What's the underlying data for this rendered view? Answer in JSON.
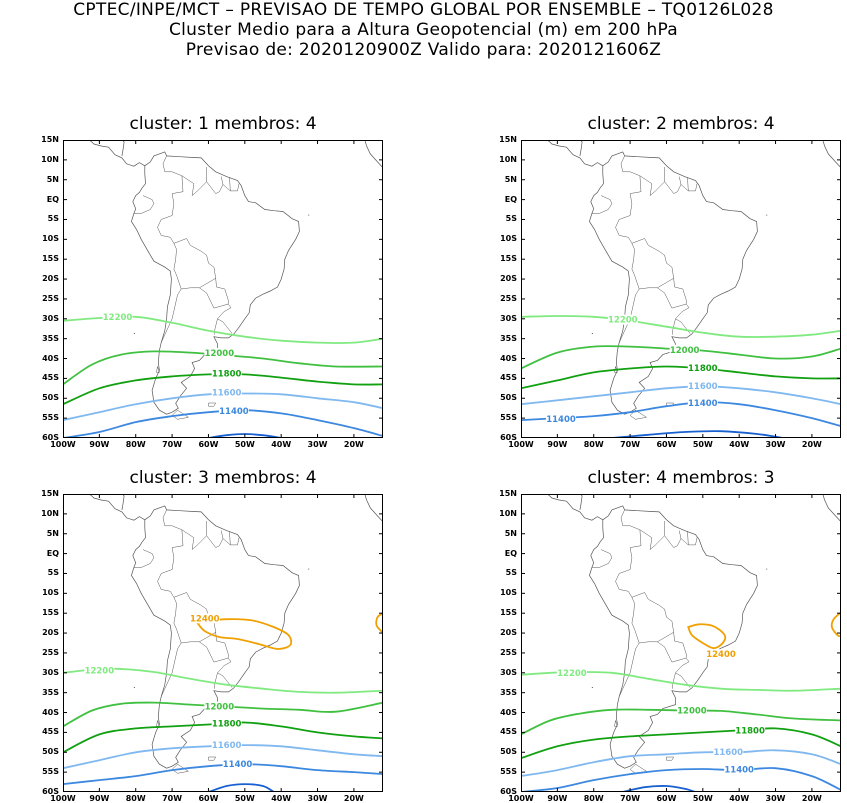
{
  "header": {
    "line1": "CPTEC/INPE/MCT – PREVISAO DE TEMPO GLOBAL POR ENSEMBLE – TQ0126L028",
    "line2": "Cluster Medio para a Altura Geopotencial (m) em 200 hPa",
    "line3": "Previsao de: 2020120900Z    Valido para: 2020121606Z"
  },
  "lat_labels": [
    "15N",
    "10N",
    "5N",
    "EQ",
    "5S",
    "10S",
    "15S",
    "20S",
    "25S",
    "30S",
    "35S",
    "40S",
    "45S",
    "50S",
    "55S",
    "60S"
  ],
  "lon_labels": [
    "100W",
    "90W",
    "80W",
    "70W",
    "60W",
    "50W",
    "40W",
    "30W",
    "20W"
  ],
  "colors": {
    "c12400": "#f0a000",
    "c12200": "#80ea80",
    "c12000": "#40c040",
    "c11800": "#10a010",
    "c11600": "#80b8f0",
    "c11400": "#3c88e0",
    "c11200": "#1860d0",
    "coast": "#555555"
  },
  "panels": [
    {
      "title": "cluster: 1   membros: 4",
      "labels": {
        "l12200": "12200",
        "l12000": "12000",
        "l11800": "11800",
        "l11600": "11600",
        "l11400": "11400"
      }
    },
    {
      "title": "cluster: 2   membros: 4",
      "labels": {
        "l12200": "12200",
        "l12000": "12000",
        "l11800": "11800",
        "l11600": "11600",
        "l11400": "11400"
      }
    },
    {
      "title": "cluster: 3   membros: 4",
      "labels": {
        "l12400": "12400",
        "l12200": "12200",
        "l12000": "12000",
        "l11800": "11800",
        "l11600": "11600",
        "l11400": "11400"
      }
    },
    {
      "title": "cluster: 4   membros: 3",
      "labels": {
        "l12400": "12400",
        "l12200": "12200",
        "l12000": "12000",
        "l11800": "11800",
        "l11600": "11600",
        "l11400": "11400"
      }
    }
  ]
}
